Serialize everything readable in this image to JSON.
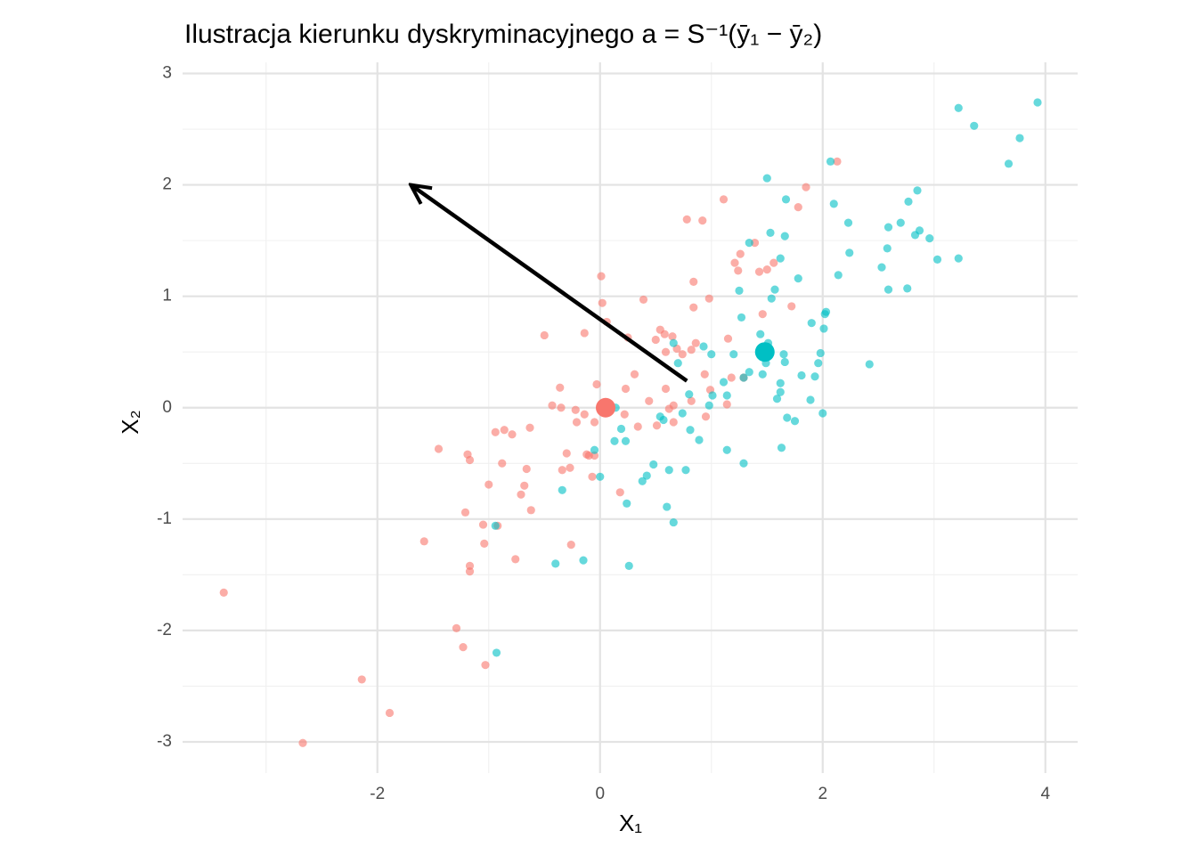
{
  "chart_data": {
    "type": "scatter",
    "title": "Ilustracja kierunku dyskryminacyjnego a = S⁻¹(ȳ₁ − ȳ₂)",
    "x_label": "X₁",
    "y_label": "X₂",
    "xlim": [
      -3.75,
      4.29
    ],
    "ylim": [
      -3.28,
      3.1
    ],
    "xticks": [
      -2,
      0,
      2,
      4
    ],
    "yticks": [
      -3,
      -2,
      -1,
      0,
      1,
      2,
      3
    ],
    "grid": true,
    "arrow": {
      "x0": 0.78,
      "y0": 0.24,
      "x1": -1.7,
      "y1": 2.0,
      "color": "#000000"
    },
    "series": [
      {
        "color": "#F8766D",
        "mean": {
          "x": 0.05,
          "y": 0.0
        },
        "x": [
          -3.38,
          -2.67,
          -2.14,
          -1.89,
          -1.58,
          -1.45,
          -1.29,
          -1.23,
          -1.21,
          -1.19,
          -1.17,
          -1.17,
          -1.17,
          -1.05,
          -1.04,
          -1.03,
          -1.0,
          -0.94,
          -0.92,
          -0.88,
          -0.86,
          -0.79,
          -0.76,
          -0.71,
          -0.68,
          -0.66,
          -0.63,
          -0.62,
          -0.5,
          -0.43,
          -0.36,
          -0.35,
          -0.34,
          -0.3,
          -0.27,
          -0.26,
          -0.22,
          -0.21,
          -0.14,
          -0.14,
          -0.12,
          -0.1,
          -0.07,
          -0.05,
          -0.05,
          -0.03,
          0.01,
          0.02,
          0.06,
          0.18,
          0.22,
          0.23,
          0.25,
          0.31,
          0.34,
          0.39,
          0.44,
          0.5,
          0.51,
          0.54,
          0.58,
          0.59,
          0.59,
          0.62,
          0.65,
          0.66,
          0.66,
          0.69,
          0.74,
          0.78,
          0.82,
          0.82,
          0.84,
          0.84,
          0.86,
          0.92,
          0.94,
          0.95,
          0.98,
          0.99,
          1.11,
          1.14,
          1.15,
          1.18,
          1.21,
          1.24,
          1.26,
          1.29,
          1.39,
          1.43,
          1.46,
          1.5,
          1.56,
          1.72,
          1.78,
          1.85,
          2.13
        ],
        "values": [
          -1.66,
          -3.01,
          -2.44,
          -2.74,
          -1.2,
          -0.37,
          -1.98,
          -2.15,
          -0.94,
          -0.42,
          -0.47,
          -1.42,
          -1.47,
          -1.05,
          -1.22,
          -2.31,
          -0.69,
          -0.22,
          -1.06,
          -0.5,
          -0.2,
          -0.24,
          -1.36,
          -0.78,
          -0.7,
          -0.55,
          -0.18,
          -0.92,
          0.65,
          0.02,
          0.18,
          0.0,
          -0.56,
          -0.41,
          -0.54,
          -1.23,
          -0.02,
          -0.13,
          0.67,
          -0.06,
          -0.42,
          -0.43,
          -0.62,
          -0.13,
          -0.43,
          0.21,
          1.18,
          0.94,
          0.77,
          -0.76,
          -0.06,
          0.17,
          0.63,
          0.3,
          -0.17,
          0.97,
          0.06,
          0.61,
          -0.16,
          0.7,
          0.66,
          0.17,
          0.5,
          -0.01,
          0.64,
          -0.13,
          0.02,
          0.53,
          0.48,
          1.69,
          0.06,
          0.52,
          1.13,
          0.9,
          0.58,
          1.68,
          0.3,
          -0.08,
          0.98,
          0.16,
          1.87,
          0.03,
          0.62,
          0.27,
          1.3,
          1.23,
          1.38,
          0.27,
          1.48,
          1.22,
          0.84,
          1.24,
          1.3,
          0.91,
          1.8,
          1.98,
          2.21
        ]
      },
      {
        "color": "#00BFC4",
        "mean": {
          "x": 1.48,
          "y": 0.5
        },
        "x": [
          -0.94,
          -0.93,
          -0.4,
          -0.34,
          -0.15,
          -0.05,
          0.0,
          0.13,
          0.14,
          0.19,
          0.23,
          0.24,
          0.26,
          0.38,
          0.42,
          0.48,
          0.54,
          0.57,
          0.6,
          0.62,
          0.66,
          0.66,
          0.7,
          0.74,
          0.77,
          0.8,
          0.81,
          0.89,
          0.93,
          0.98,
          1.0,
          1.01,
          1.11,
          1.14,
          1.14,
          1.2,
          1.25,
          1.27,
          1.29,
          1.29,
          1.34,
          1.34,
          1.44,
          1.46,
          1.49,
          1.5,
          1.51,
          1.53,
          1.54,
          1.57,
          1.59,
          1.62,
          1.62,
          1.62,
          1.63,
          1.65,
          1.66,
          1.66,
          1.67,
          1.68,
          1.75,
          1.78,
          1.81,
          1.89,
          1.9,
          1.93,
          1.96,
          1.98,
          2.0,
          2.01,
          2.02,
          2.03,
          2.07,
          2.1,
          2.14,
          2.23,
          2.24,
          2.42,
          2.53,
          2.58,
          2.59,
          2.59,
          2.7,
          2.76,
          2.77,
          2.83,
          2.85,
          2.87,
          2.96,
          3.03,
          3.22,
          3.22,
          3.36,
          3.67,
          3.77,
          3.93
        ],
        "values": [
          -1.06,
          -2.2,
          -1.4,
          -0.74,
          -1.37,
          -0.38,
          -0.62,
          -0.3,
          0.0,
          -0.19,
          -0.3,
          -0.86,
          -1.42,
          -0.66,
          -0.61,
          -0.51,
          -0.08,
          -0.11,
          -0.89,
          -0.56,
          0.58,
          -1.03,
          0.4,
          -0.05,
          -0.56,
          0.12,
          -0.2,
          -0.29,
          0.55,
          0.02,
          0.48,
          0.11,
          0.23,
          -0.38,
          0.11,
          0.48,
          1.05,
          0.81,
          -0.5,
          0.27,
          1.48,
          0.32,
          0.66,
          0.3,
          0.4,
          2.06,
          0.58,
          1.57,
          0.98,
          1.06,
          0.08,
          1.34,
          0.22,
          0.14,
          -0.36,
          0.48,
          1.54,
          0.41,
          1.87,
          -0.09,
          -0.12,
          1.16,
          0.29,
          0.07,
          0.76,
          0.28,
          0.4,
          0.49,
          -0.05,
          0.71,
          0.84,
          0.86,
          2.21,
          1.83,
          1.19,
          1.66,
          1.39,
          0.39,
          1.26,
          1.43,
          1.62,
          1.06,
          1.66,
          1.07,
          1.85,
          1.55,
          1.95,
          1.59,
          1.52,
          1.33,
          1.34,
          2.69,
          2.53,
          2.19,
          2.42,
          2.74
        ]
      }
    ]
  }
}
